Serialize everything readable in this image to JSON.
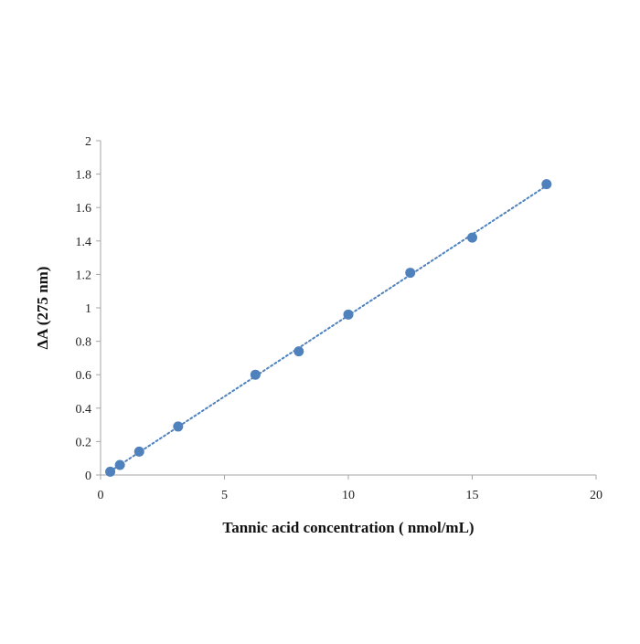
{
  "chart_data": {
    "type": "scatter",
    "title": "",
    "xlabel": "Tannic acid concentration ( nmol/mL)",
    "ylabel": "ΔA (275 nm)",
    "xlim": [
      0,
      20
    ],
    "ylim": [
      0,
      2
    ],
    "xticks": [
      "0",
      "5",
      "10",
      "15",
      "20"
    ],
    "yticks": [
      "0",
      "0.2",
      "0.4",
      "0.6",
      "0.8",
      "1",
      "1.2",
      "1.4",
      "1.6",
      "1.8",
      "2"
    ],
    "grid": false,
    "legend": "none",
    "series": [
      {
        "color": "#4f81bd",
        "trendline": "linear dotted",
        "x": [
          0.39,
          0.78,
          1.56,
          3.13,
          6.25,
          8,
          10,
          12.5,
          15,
          18
        ],
        "y": [
          0.02,
          0.06,
          0.14,
          0.29,
          0.6,
          0.74,
          0.96,
          1.21,
          1.42,
          1.74
        ]
      }
    ]
  }
}
